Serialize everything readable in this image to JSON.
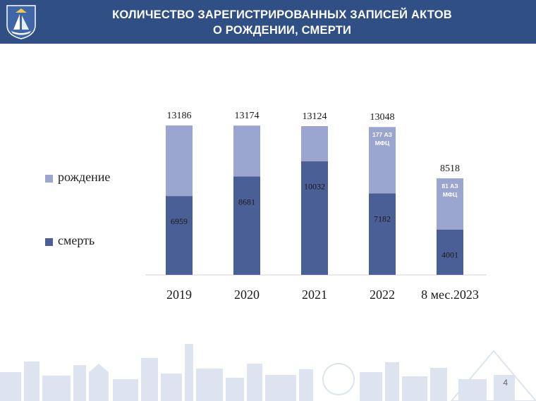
{
  "header": {
    "title_line1": "КОЛИЧЕСТВО ЗАРЕГИСТРИРОВАННЫХ ЗАПИСЕЙ АКТОВ",
    "title_line2": "О РОЖДЕНИИ,  СМЕРТИ"
  },
  "page_number": "4",
  "colors": {
    "header_bg": "#2f4f85",
    "birth": "#9aa6cf",
    "death": "#4b5f97"
  },
  "chart_data": {
    "type": "bar",
    "stacked": true,
    "categories": [
      "2019",
      "2020",
      "2021",
      "2022",
      "8 мес.2023"
    ],
    "series": [
      {
        "name": "смерть",
        "values": [
          6959,
          8681,
          10032,
          7182,
          4001
        ],
        "color": "#4b5f97"
      },
      {
        "name": "рождение",
        "values": [
          6227,
          4493,
          3092,
          5866,
          4517
        ],
        "color": "#9aa6cf"
      }
    ],
    "totals": [
      13186,
      13174,
      13124,
      13048,
      8518
    ],
    "annotations": [
      {
        "category": "2022",
        "lines": [
          "177 АЗ",
          "МФЦ"
        ]
      },
      {
        "category": "8 мес.2023",
        "lines": [
          "81 АЗ",
          "МФЦ"
        ]
      }
    ],
    "legend": {
      "position": "left",
      "items": [
        "рождение",
        "смерть"
      ]
    },
    "grid": false,
    "ylim": [
      0,
      13186
    ]
  }
}
